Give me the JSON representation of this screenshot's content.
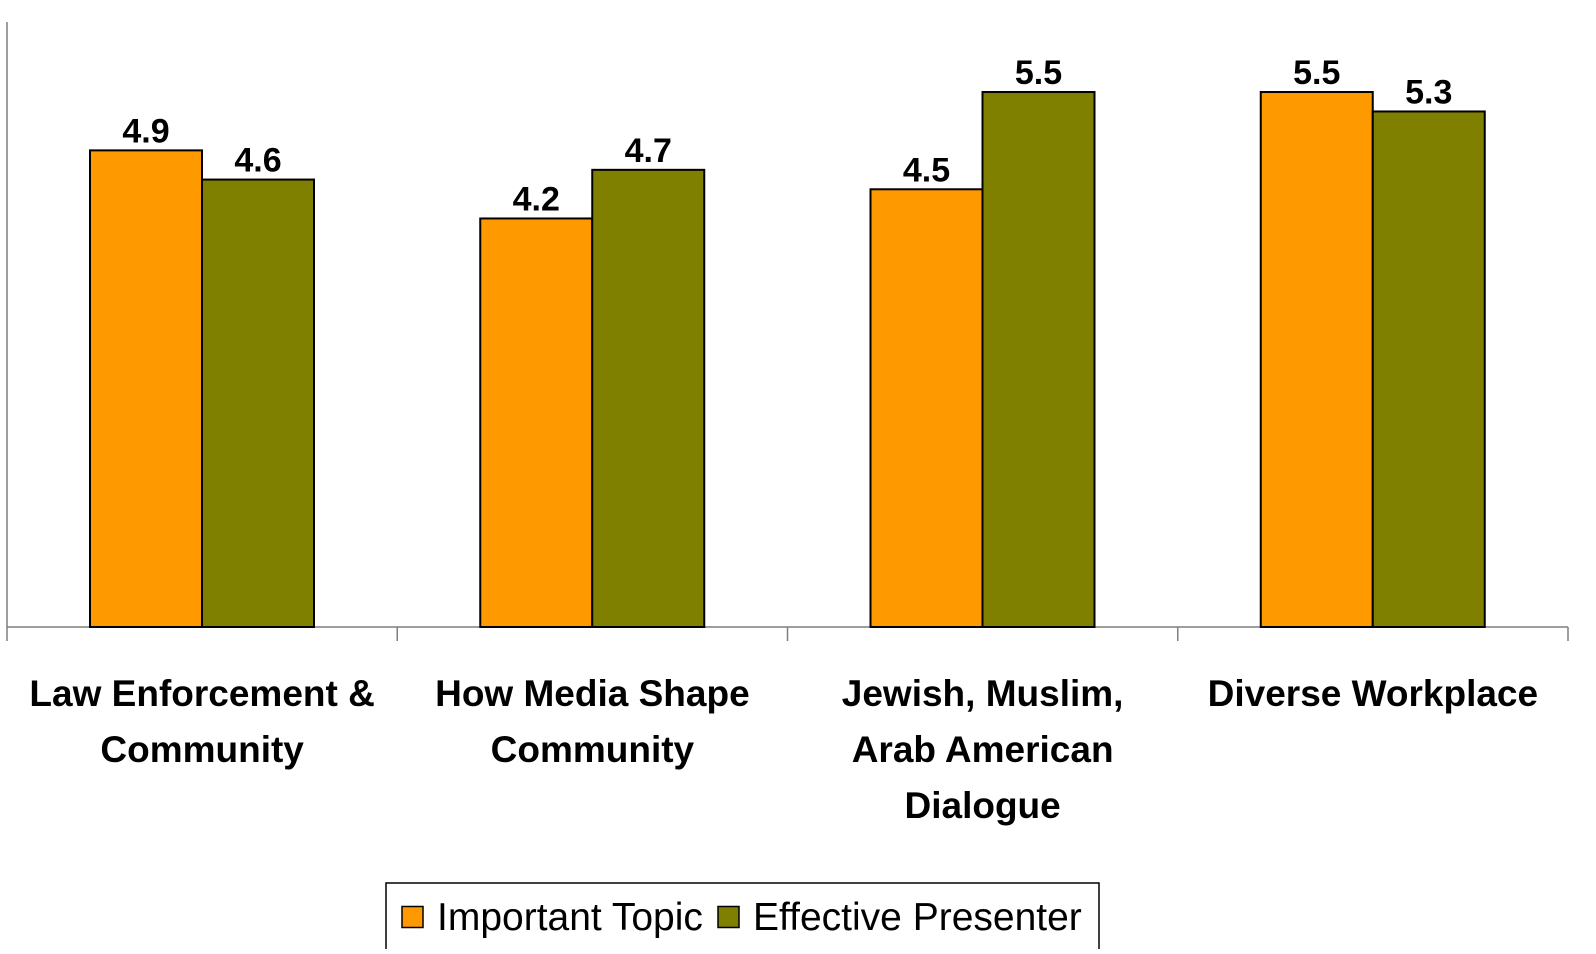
{
  "chart_data": {
    "type": "bar",
    "title": "",
    "xlabel": "",
    "ylabel": "",
    "categories": [
      [
        "Law Enforcement &",
        "Community"
      ],
      [
        "How Media Shape",
        "Community"
      ],
      [
        "Jewish, Muslim,",
        "Arab American",
        "Dialogue"
      ],
      [
        "Diverse Workplace"
      ]
    ],
    "series": [
      {
        "name": "Important Topic",
        "values": [
          4.9,
          4.2,
          4.5,
          5.5
        ],
        "color": "#FF9900"
      },
      {
        "name": "Effective Presenter",
        "values": [
          4.6,
          4.7,
          5.5,
          5.3
        ],
        "color": "#808000"
      }
    ],
    "ylim": [
      0,
      5.5
    ],
    "grid": false,
    "legend_position": "bottom"
  }
}
